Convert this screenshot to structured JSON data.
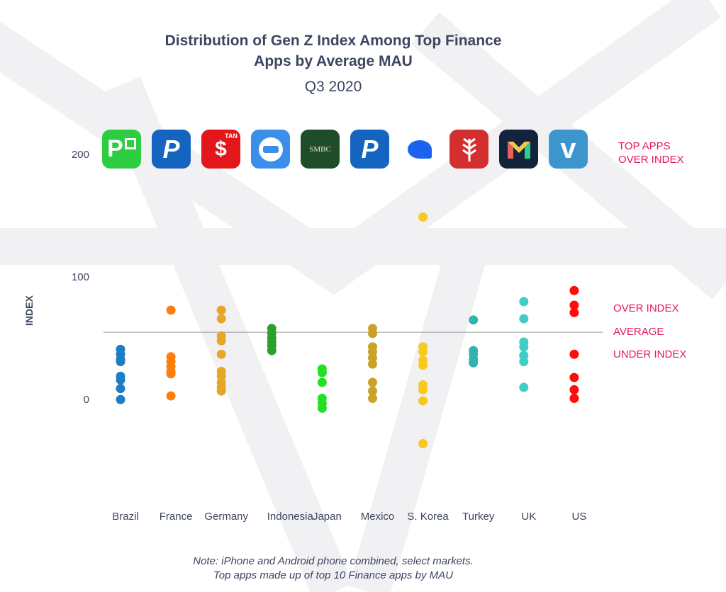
{
  "header": {
    "title_line1": "Distribution of Gen Z Index Among Top Finance",
    "title_line2": "Apps by Average MAU",
    "subtitle": "Q3 2020"
  },
  "apps": [
    {
      "market": "Brazil",
      "icon": "picpay-icon",
      "glyph": "P",
      "color": "#2ecc40"
    },
    {
      "market": "France",
      "icon": "paypal-icon",
      "glyph": "P",
      "color": "#1565c0"
    },
    {
      "market": "Germany",
      "icon": "sparkasse-icon",
      "glyph": "$",
      "badge": "TAN",
      "color": "#e3161b"
    },
    {
      "market": "Indonesia",
      "icon": "dana-icon",
      "glyph": "",
      "color": "#3b8eea"
    },
    {
      "market": "Japan",
      "icon": "smbc-icon",
      "glyph": "SMBC",
      "color": "#1f4d2b"
    },
    {
      "market": "Mexico",
      "icon": "paypal-icon",
      "glyph": "P",
      "color": "#1565c0"
    },
    {
      "market": "S. Korea",
      "icon": "toss-icon",
      "glyph": "",
      "color": "#1a63f0"
    },
    {
      "market": "Turkey",
      "icon": "ziraat-icon",
      "glyph": "",
      "color": "#d32f2f"
    },
    {
      "market": "UK",
      "icon": "monzo-icon",
      "glyph": "M",
      "color": "#14233c"
    },
    {
      "market": "US",
      "icon": "venmo-icon",
      "glyph": "v",
      "color": "#3d95ce"
    }
  ],
  "legend": {
    "top_apps": [
      "TOP APPS",
      "OVER INDEX"
    ],
    "over_index": "OVER INDEX",
    "average": "AVERAGE",
    "under_index": "UNDER  INDEX"
  },
  "note": {
    "line1": "Note: iPhone and Android phone combined, select markets.",
    "line2": "Top apps made up of top 10 Finance apps by MAU"
  },
  "chart_data": {
    "type": "scatter",
    "title": "Distribution of Gen Z Index Among Top Finance Apps by Average MAU",
    "subtitle": "Q3 2020",
    "xlabel": "",
    "ylabel": "INDEX",
    "ylim": [
      -50,
      200
    ],
    "yticks": [
      0,
      100,
      200
    ],
    "average": 56,
    "grid": false,
    "categories": [
      "Brazil",
      "France",
      "Germany",
      "Indonesia",
      "Japan",
      "Mexico",
      "S. Korea",
      "Turkey",
      "UK",
      "US"
    ],
    "colors": [
      "#1b7ec7",
      "#ff7f0e",
      "#e6a728",
      "#2ca02c",
      "#22e022",
      "#c9a227",
      "#f7c81e",
      "#32b4ad",
      "#3fcdc4",
      "#ff0d0d"
    ],
    "series": [
      {
        "name": "Brazil",
        "values": [
          42,
          38,
          34,
          32,
          20,
          17,
          10,
          1
        ]
      },
      {
        "name": "France",
        "values": [
          74,
          36,
          32,
          28,
          24,
          22,
          4
        ]
      },
      {
        "name": "Germany",
        "values": [
          74,
          67,
          53,
          49,
          38,
          24,
          20,
          15,
          11,
          8
        ]
      },
      {
        "name": "Indonesia",
        "values": [
          59,
          55,
          51,
          48,
          45,
          41
        ]
      },
      {
        "name": "Japan",
        "values": [
          26,
          23,
          15,
          2,
          -2,
          -6
        ]
      },
      {
        "name": "Mexico",
        "values": [
          59,
          55,
          44,
          40,
          35,
          30,
          15,
          8,
          2
        ]
      },
      {
        "name": "S. Korea",
        "values": [
          150,
          44,
          40,
          33,
          29,
          13,
          9,
          0,
          -35
        ]
      },
      {
        "name": "Turkey",
        "values": [
          66,
          41,
          38,
          34,
          31
        ]
      },
      {
        "name": "UK",
        "values": [
          81,
          67,
          48,
          44,
          37,
          32,
          11
        ]
      },
      {
        "name": "US",
        "values": [
          90,
          78,
          72,
          38,
          19,
          9,
          2
        ]
      }
    ]
  }
}
